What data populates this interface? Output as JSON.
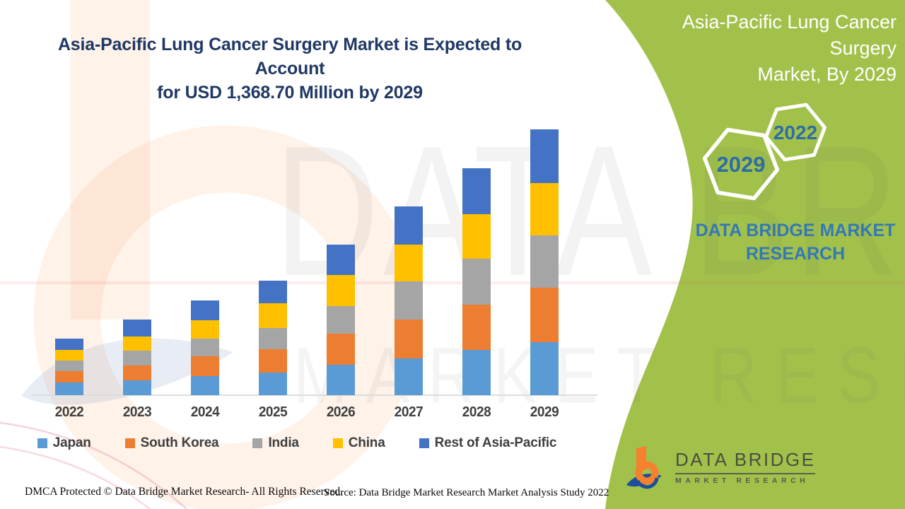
{
  "header": {
    "title_line1": "Asia-Pacific Lung Cancer Surgery Market is Expected to Account",
    "title_line2": "for USD 1,368.70 Million by 2029"
  },
  "side_panel": {
    "title_line1": "Asia-Pacific Lung Cancer Surgery",
    "title_line2": "Market, By 2029",
    "hexagons": [
      {
        "label": "2029"
      },
      {
        "label": "2022"
      }
    ],
    "caption_line1": "DATA BRIDGE MARKET",
    "caption_line2": "RESEARCH",
    "colors": {
      "background": "#a2c14b",
      "hexagon_stroke": "#ffffff",
      "year_text": "#2e6da4",
      "caption_text": "#3478b6"
    }
  },
  "chart_data": {
    "type": "bar",
    "stacked": true,
    "title": "Asia-Pacific Lung Cancer Surgery Market is Expected to Account for USD 1,368.70 Million by 2029",
    "unit": "USD Million",
    "xlabel": "",
    "ylabel": "",
    "categories": [
      "2022",
      "2023",
      "2024",
      "2025",
      "2026",
      "2027",
      "2028",
      "2029"
    ],
    "series": [
      {
        "name": "Japan",
        "color": "#5b9bd5",
        "values": [
          65,
          76,
          99,
          115,
          157,
          189,
          233,
          273
        ]
      },
      {
        "name": "South Korea",
        "color": "#ed7d31",
        "values": [
          58,
          76,
          100,
          121,
          160,
          200,
          233,
          279
        ]
      },
      {
        "name": "India",
        "color": "#a5a5a5",
        "values": [
          55,
          76,
          92,
          110,
          142,
          197,
          237,
          270
        ]
      },
      {
        "name": "China",
        "color": "#ffc000",
        "values": [
          55,
          73,
          96,
          126,
          160,
          189,
          229,
          270
        ]
      },
      {
        "name": "Rest of Asia-Pacific",
        "color": "#4472c4",
        "values": [
          58,
          87,
          101,
          117,
          157,
          197,
          237,
          276.7
        ]
      }
    ],
    "totals": [
      291,
      388,
      488,
      589,
      776,
      972,
      1169,
      1368.7
    ],
    "ylim": [
      0,
      1400
    ],
    "gridlines": false,
    "legend_position": "bottom",
    "value_highlight": "1,368.70"
  },
  "footer": {
    "dmca": "DMCA Protected © Data Bridge Market Research- All Rights Reserved.",
    "source": "Source: Data Bridge Market Research Market Analysis Study 2022"
  },
  "brand": {
    "name": "DATA BRIDGE",
    "subtitle": "MARKET RESEARCH"
  }
}
